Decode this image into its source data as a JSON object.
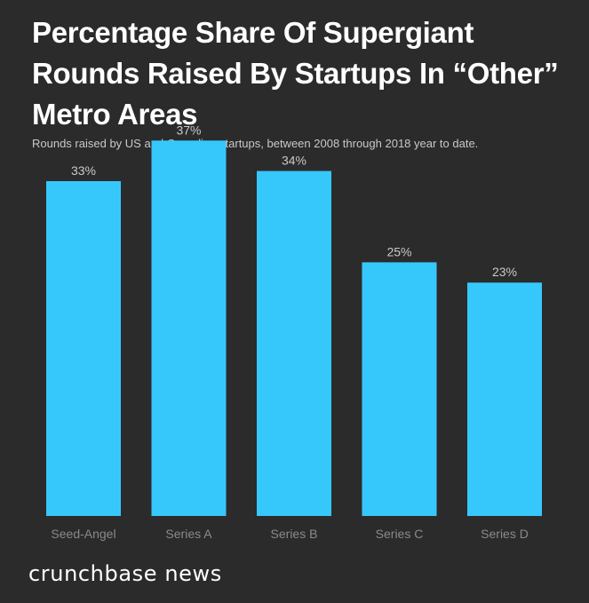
{
  "header": {
    "title": "Percentage Share Of Supergiant Rounds Raised By Startups In “Other” Metro Areas",
    "subtitle": "Rounds raised by US and Canadian startups, between 2008 through 2018 year to date."
  },
  "chart_data": {
    "type": "bar",
    "categories": [
      "Seed-Angel",
      "Series A",
      "Series B",
      "Series C",
      "Series D"
    ],
    "values": [
      33,
      37,
      34,
      25,
      23
    ],
    "data_labels": [
      "33%",
      "37%",
      "34%",
      "25%",
      "23%"
    ],
    "ylim": [
      0,
      40
    ],
    "grid": false,
    "legend": "none",
    "colors": {
      "bar": "#37c8fb",
      "background": "#2b2b2b",
      "label": "#c9c9c9",
      "tick": "#8a8a8a"
    }
  },
  "footer": {
    "brand": "crunchbase news"
  }
}
